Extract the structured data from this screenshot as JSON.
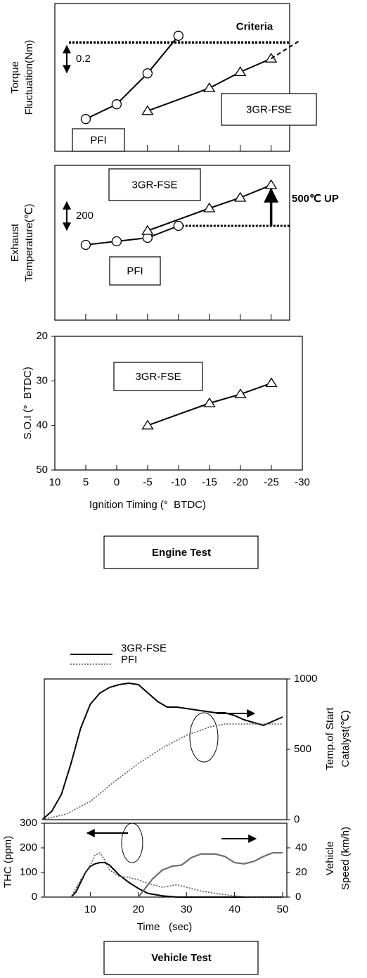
{
  "chart_data": [
    {
      "type": "line",
      "ylabel": [
        "Torque",
        "Fluctuation(Nm)"
      ],
      "xlim": [
        10,
        -28
      ],
      "ylim": [
        0,
        1.1
      ],
      "series": [
        {
          "name": "PFI",
          "x": [
            5,
            0,
            -5,
            -10
          ],
          "values": [
            0.24,
            0.35,
            0.58,
            0.86
          ],
          "color": "#000000",
          "marker": "circle"
        },
        {
          "name": "3GR-FSE",
          "x": [
            -5,
            -15,
            -20,
            -25
          ],
          "values": [
            0.3,
            0.47,
            0.59,
            0.69
          ],
          "color": "#000000",
          "marker": "triangle"
        },
        {
          "x": [
            -25,
            -29.5
          ],
          "values": [
            0.69,
            0.82
          ],
          "color": "#000000",
          "dash": "dashed"
        }
      ],
      "criteria": {
        "label": "Criteria",
        "value": 0.81
      },
      "scale_bar": 0.2
    },
    {
      "type": "line",
      "ylabel": [
        "Exhaust",
        "Temperature(℃)"
      ],
      "xlim": [
        10,
        -28
      ],
      "ylim": [
        0,
        1100
      ],
      "series": [
        {
          "name": "PFI",
          "x": [
            5,
            0,
            -5,
            -10
          ],
          "values": [
            535,
            560,
            585,
            670
          ],
          "color": "#000000",
          "marker": "circle"
        },
        {
          "name": "3GR-FSE",
          "x": [
            -5,
            -15,
            -20,
            -25
          ],
          "values": [
            635,
            795,
            870,
            960
          ],
          "color": "#000000",
          "marker": "triangle"
        }
      ],
      "scale_bar": 200,
      "annotation": "500℃ UP"
    },
    {
      "type": "line",
      "ylabel": [
        "S.O.I (°  BTDC)"
      ],
      "xlabel": "Ignition Timing (°  BTDC)",
      "xlim": [
        10,
        -30
      ],
      "ylim": [
        50,
        20
      ],
      "xticks": [
        10,
        5,
        0,
        -5,
        -10,
        -15,
        -20,
        -25,
        -30
      ],
      "yticks": [
        20,
        30,
        40,
        50
      ],
      "series": [
        {
          "name": "3GR-FSE",
          "x": [
            -5,
            -15,
            -20,
            -25
          ],
          "values": [
            40,
            35,
            33,
            30.5
          ],
          "color": "#000000",
          "marker": "triangle"
        }
      ]
    },
    {
      "type": "line",
      "ylabel": [
        "Temp.of Start",
        "Catalyst(℃)"
      ],
      "y_axis": "right",
      "xlim": [
        0,
        50
      ],
      "ylim": [
        0,
        1000
      ],
      "yticks": [
        0,
        500,
        1000
      ],
      "series": [
        {
          "name": "3GR-FSE",
          "x": [
            0,
            2,
            4,
            6,
            8,
            10,
            12,
            14,
            16,
            18,
            20,
            22,
            24,
            26,
            28,
            30,
            32,
            34,
            36,
            38,
            40,
            42,
            44,
            46,
            48,
            50
          ],
          "values": [
            0,
            60,
            180,
            400,
            650,
            820,
            900,
            940,
            960,
            970,
            960,
            900,
            840,
            800,
            800,
            790,
            780,
            770,
            760,
            760,
            740,
            710,
            690,
            670,
            700,
            730
          ],
          "color": "#000000"
        },
        {
          "name": "PFI",
          "x": [
            0,
            5,
            10,
            15,
            20,
            25,
            30,
            35,
            38,
            40,
            50
          ],
          "values": [
            0,
            40,
            130,
            270,
            400,
            510,
            600,
            660,
            680,
            680,
            680
          ],
          "color": "#555555",
          "dash": "dotted"
        }
      ]
    },
    {
      "type": "line",
      "ylabel": [
        "THC (ppm)"
      ],
      "y2label": [
        "Vehicle",
        "Speed (km/h)"
      ],
      "xlabel": "Time   (sec)",
      "xlim": [
        0,
        50
      ],
      "xticks": [
        10,
        20,
        30,
        40,
        50
      ],
      "ylim": [
        0,
        300
      ],
      "yticks": [
        0,
        100,
        200,
        300
      ],
      "y2lim": [
        0,
        60
      ],
      "y2ticks": [
        0,
        20,
        40
      ],
      "series": [
        {
          "x": [
            0,
            6,
            7,
            8,
            9,
            10,
            11,
            12,
            13,
            14,
            15,
            16,
            18,
            20,
            22,
            25,
            28,
            50
          ],
          "values": [
            0,
            0,
            20,
            60,
            100,
            125,
            135,
            140,
            140,
            130,
            110,
            90,
            60,
            35,
            15,
            5,
            0,
            0
          ],
          "color": "#000000"
        },
        {
          "x": [
            0,
            6,
            8,
            10,
            11,
            12,
            13,
            14,
            16,
            18,
            20,
            22,
            25,
            28,
            30,
            33,
            36,
            40,
            43,
            50
          ],
          "values": [
            0,
            0,
            70,
            130,
            170,
            180,
            150,
            110,
            85,
            80,
            70,
            55,
            40,
            50,
            40,
            25,
            15,
            5,
            0,
            0
          ],
          "color": "#555555",
          "dash": "dotted"
        },
        {
          "x": [
            0,
            20,
            21,
            23,
            25,
            27,
            29,
            31,
            33,
            36,
            38,
            40,
            42,
            44,
            46,
            48,
            50
          ],
          "values": [
            0,
            0,
            5,
            15,
            22,
            25,
            26,
            32,
            35,
            35,
            33,
            28,
            27,
            29,
            33,
            36,
            36
          ],
          "color": "#6e6e6e",
          "axis": "y2"
        }
      ]
    }
  ],
  "captions": [
    "Engine Test",
    "Vehicle Test"
  ]
}
